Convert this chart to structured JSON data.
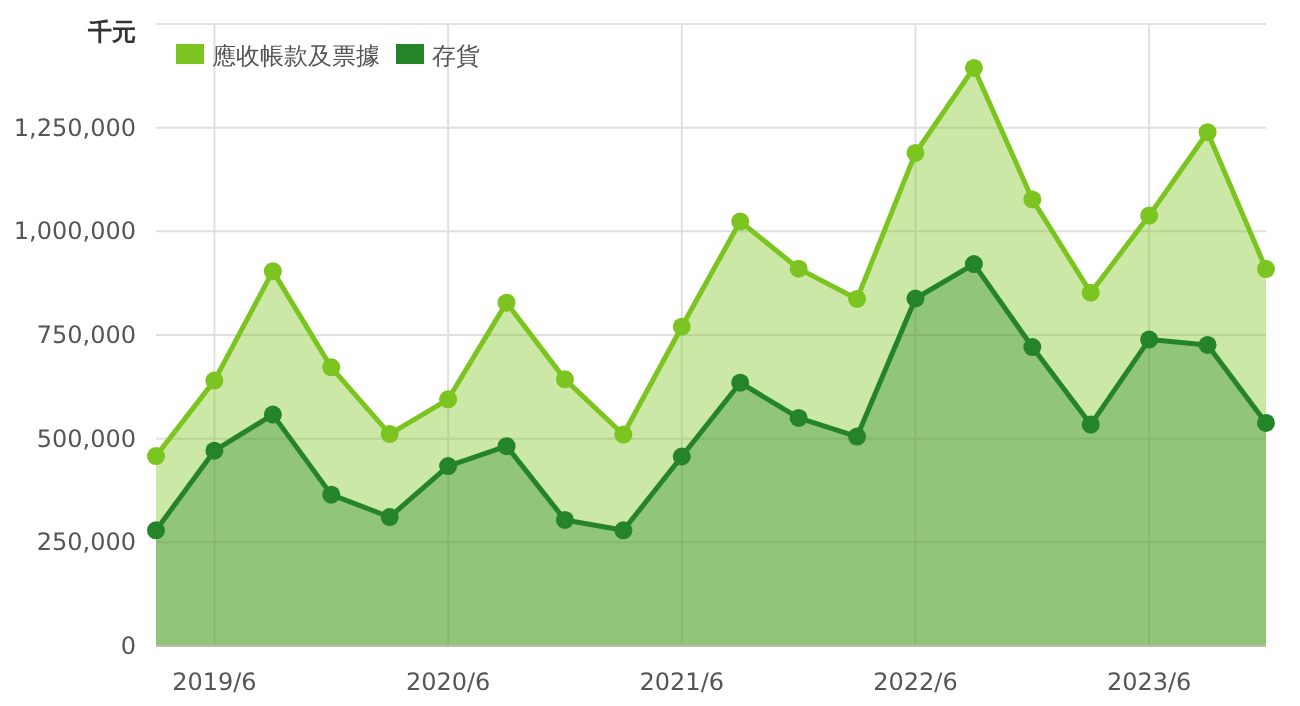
{
  "chart_data": {
    "type": "area",
    "ylabel": "千元",
    "x": [
      "2019-03",
      "2019-06",
      "2019-09",
      "2019-12",
      "2020-03",
      "2020-06",
      "2020-09",
      "2020-12",
      "2021-03",
      "2021-06",
      "2021-09",
      "2021-12",
      "2022-03",
      "2022-06",
      "2022-09",
      "2022-12",
      "2023-03",
      "2023-06",
      "2023-09",
      "2023-12"
    ],
    "series": [
      {
        "name": "應收帳款及票據",
        "color": "#7cc520",
        "values": [
          458000,
          640000,
          904000,
          672000,
          511000,
          595000,
          828000,
          643000,
          510000,
          770000,
          1024000,
          910000,
          837000,
          1189000,
          1394000,
          1077000,
          852000,
          1038000,
          1239000,
          909000
        ]
      },
      {
        "name": "存貨",
        "color": "#258427",
        "values": [
          279000,
          471000,
          558000,
          365000,
          311000,
          434000,
          482000,
          304000,
          279000,
          457000,
          635000,
          550000,
          505000,
          838000,
          921000,
          721000,
          534000,
          739000,
          726000,
          538000
        ]
      }
    ],
    "xlim": [
      "2019-03",
      "2023-12"
    ],
    "xticks": [
      {
        "value": "2019-06",
        "label": "2019/6"
      },
      {
        "value": "2020-06",
        "label": "2020/6"
      },
      {
        "value": "2021-06",
        "label": "2021/6"
      },
      {
        "value": "2022-06",
        "label": "2022/6"
      },
      {
        "value": "2023-06",
        "label": "2023/6"
      }
    ],
    "ylim": [
      0,
      1500000
    ],
    "yticks": [
      0,
      {
        "value": 250000,
        "label": "250,000"
      },
      {
        "value": 500000,
        "label": "500,000"
      },
      {
        "value": 750000,
        "label": "750,000"
      },
      {
        "value": 1000000,
        "label": "1,000,000"
      },
      {
        "value": 1250000,
        "label": "1,250,000"
      },
      {
        "value": 1500000,
        "label": null
      }
    ],
    "grid": true,
    "legend": "top left",
    "marker": "circle",
    "line_style": "solid"
  }
}
